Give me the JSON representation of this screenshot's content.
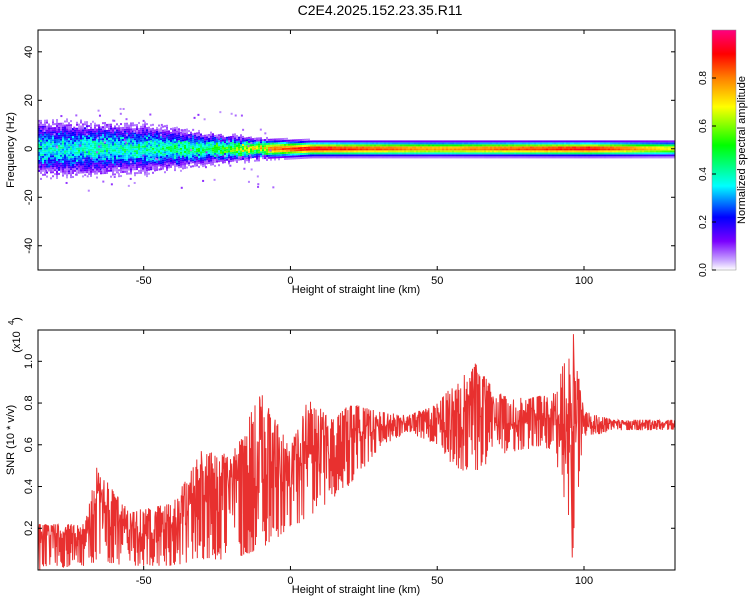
{
  "title": "C2E4.2025.152.23.35.R11",
  "colors": {
    "series": "#e8302f",
    "axis": "#000000"
  },
  "chart_data": [
    {
      "type": "heatmap",
      "xlabel": "Height of straight line (km)",
      "ylabel": "Frequency (Hz)",
      "xlim": [
        -86,
        131
      ],
      "ylim": [
        -50,
        49
      ],
      "xticks": [
        -50,
        0,
        50,
        100
      ],
      "xtick_labels": [
        "-50",
        "0",
        "50",
        "100"
      ],
      "yticks": [
        -40,
        -20,
        0,
        20,
        40
      ],
      "ytick_labels": [
        "-40",
        "-20",
        "0",
        "20",
        "40"
      ],
      "colorbar": {
        "label": "Normalized spectral amplitude",
        "range": [
          0,
          1
        ],
        "ticks": [
          0.0,
          0.2,
          0.4,
          0.6,
          0.8
        ],
        "tick_labels": [
          "0.0",
          "0.2",
          "0.4",
          "0.6",
          "0.8"
        ],
        "colormap": "rainbow (white-purple-blue-cyan-green-yellow-orange-red-magenta)"
      },
      "description_points": [
        {
          "x": -85,
          "spread_hz": 14,
          "peak": 0.45
        },
        {
          "x": -50,
          "spread_hz": 12,
          "peak": 0.5
        },
        {
          "x": -30,
          "spread_hz": 8,
          "peak": 0.55
        },
        {
          "x": -12,
          "spread_hz": 5,
          "peak": 0.8
        },
        {
          "x": 7,
          "spread_hz": 4,
          "peak": 0.95
        },
        {
          "x": 50,
          "spread_hz": 4,
          "peak": 0.8
        },
        {
          "x": 102,
          "spread_hz": 4,
          "peak": 0.95
        },
        {
          "x": 131,
          "spread_hz": 4,
          "peak": 0.7
        }
      ]
    },
    {
      "type": "line",
      "xlabel": "Height of straight line (km)",
      "ylabel": "SNR (10 * v/v)",
      "y_multiplier_label": "(x10",
      "y_multiplier_exp": "4",
      "xlim": [
        -86,
        131
      ],
      "ylim": [
        0.0,
        1.15
      ],
      "xticks": [
        -50,
        0,
        50,
        100
      ],
      "xtick_labels": [
        "-50",
        "0",
        "50",
        "100"
      ],
      "yticks": [
        0.2,
        0.4,
        0.6,
        0.8,
        1.0
      ],
      "ytick_labels": [
        "0.2",
        "0.4",
        "0.6",
        "0.8",
        "1.0"
      ],
      "series": [
        {
          "color": "#e8302f",
          "x": [
            -86,
            -80,
            -75,
            -70,
            -65,
            -60,
            -55,
            -50,
            -45,
            -40,
            -35,
            -30,
            -25,
            -20,
            -15,
            -10,
            -5,
            0,
            5,
            10,
            15,
            20,
            25,
            30,
            35,
            40,
            45,
            50,
            55,
            60,
            65,
            70,
            75,
            80,
            85,
            90,
            95,
            97,
            100,
            105,
            110,
            115,
            120,
            125,
            131
          ],
          "y": [
            0.07,
            0.1,
            0.09,
            0.12,
            0.14,
            0.15,
            0.13,
            0.12,
            0.14,
            0.18,
            0.26,
            0.3,
            0.28,
            0.32,
            0.35,
            0.38,
            0.34,
            0.4,
            0.45,
            0.44,
            0.5,
            0.55,
            0.6,
            0.65,
            0.68,
            0.7,
            0.7,
            0.71,
            0.73,
            0.72,
            0.7,
            0.71,
            0.72,
            0.72,
            0.71,
            0.72,
            0.7,
            0.7,
            0.69,
            0.69,
            0.69,
            0.69,
            0.69,
            0.69,
            0.69
          ]
        }
      ],
      "envelope": [
        {
          "x": -86,
          "lo": 0.0,
          "hi": 0.22
        },
        {
          "x": -70,
          "lo": 0.02,
          "hi": 0.22
        },
        {
          "x": -66,
          "lo": 0.04,
          "hi": 0.49
        },
        {
          "x": -55,
          "lo": 0.02,
          "hi": 0.28
        },
        {
          "x": -40,
          "lo": 0.02,
          "hi": 0.32
        },
        {
          "x": -30,
          "lo": 0.05,
          "hi": 0.58
        },
        {
          "x": -20,
          "lo": 0.05,
          "hi": 0.55
        },
        {
          "x": -10,
          "lo": 0.1,
          "hi": 0.86
        },
        {
          "x": 0,
          "lo": 0.2,
          "hi": 0.6
        },
        {
          "x": 6,
          "lo": 0.25,
          "hi": 0.82
        },
        {
          "x": 15,
          "lo": 0.35,
          "hi": 0.72
        },
        {
          "x": 20,
          "lo": 0.4,
          "hi": 0.8
        },
        {
          "x": 30,
          "lo": 0.58,
          "hi": 0.76
        },
        {
          "x": 40,
          "lo": 0.66,
          "hi": 0.74
        },
        {
          "x": 50,
          "lo": 0.6,
          "hi": 0.8
        },
        {
          "x": 55,
          "lo": 0.5,
          "hi": 0.88
        },
        {
          "x": 63,
          "lo": 0.45,
          "hi": 0.99
        },
        {
          "x": 70,
          "lo": 0.55,
          "hi": 0.85
        },
        {
          "x": 80,
          "lo": 0.58,
          "hi": 0.82
        },
        {
          "x": 90,
          "lo": 0.58,
          "hi": 0.85
        },
        {
          "x": 96,
          "lo": 0.06,
          "hi": 1.13
        },
        {
          "x": 100,
          "lo": 0.63,
          "hi": 0.76
        },
        {
          "x": 110,
          "lo": 0.67,
          "hi": 0.72
        },
        {
          "x": 131,
          "lo": 0.67,
          "hi": 0.72
        }
      ]
    }
  ]
}
